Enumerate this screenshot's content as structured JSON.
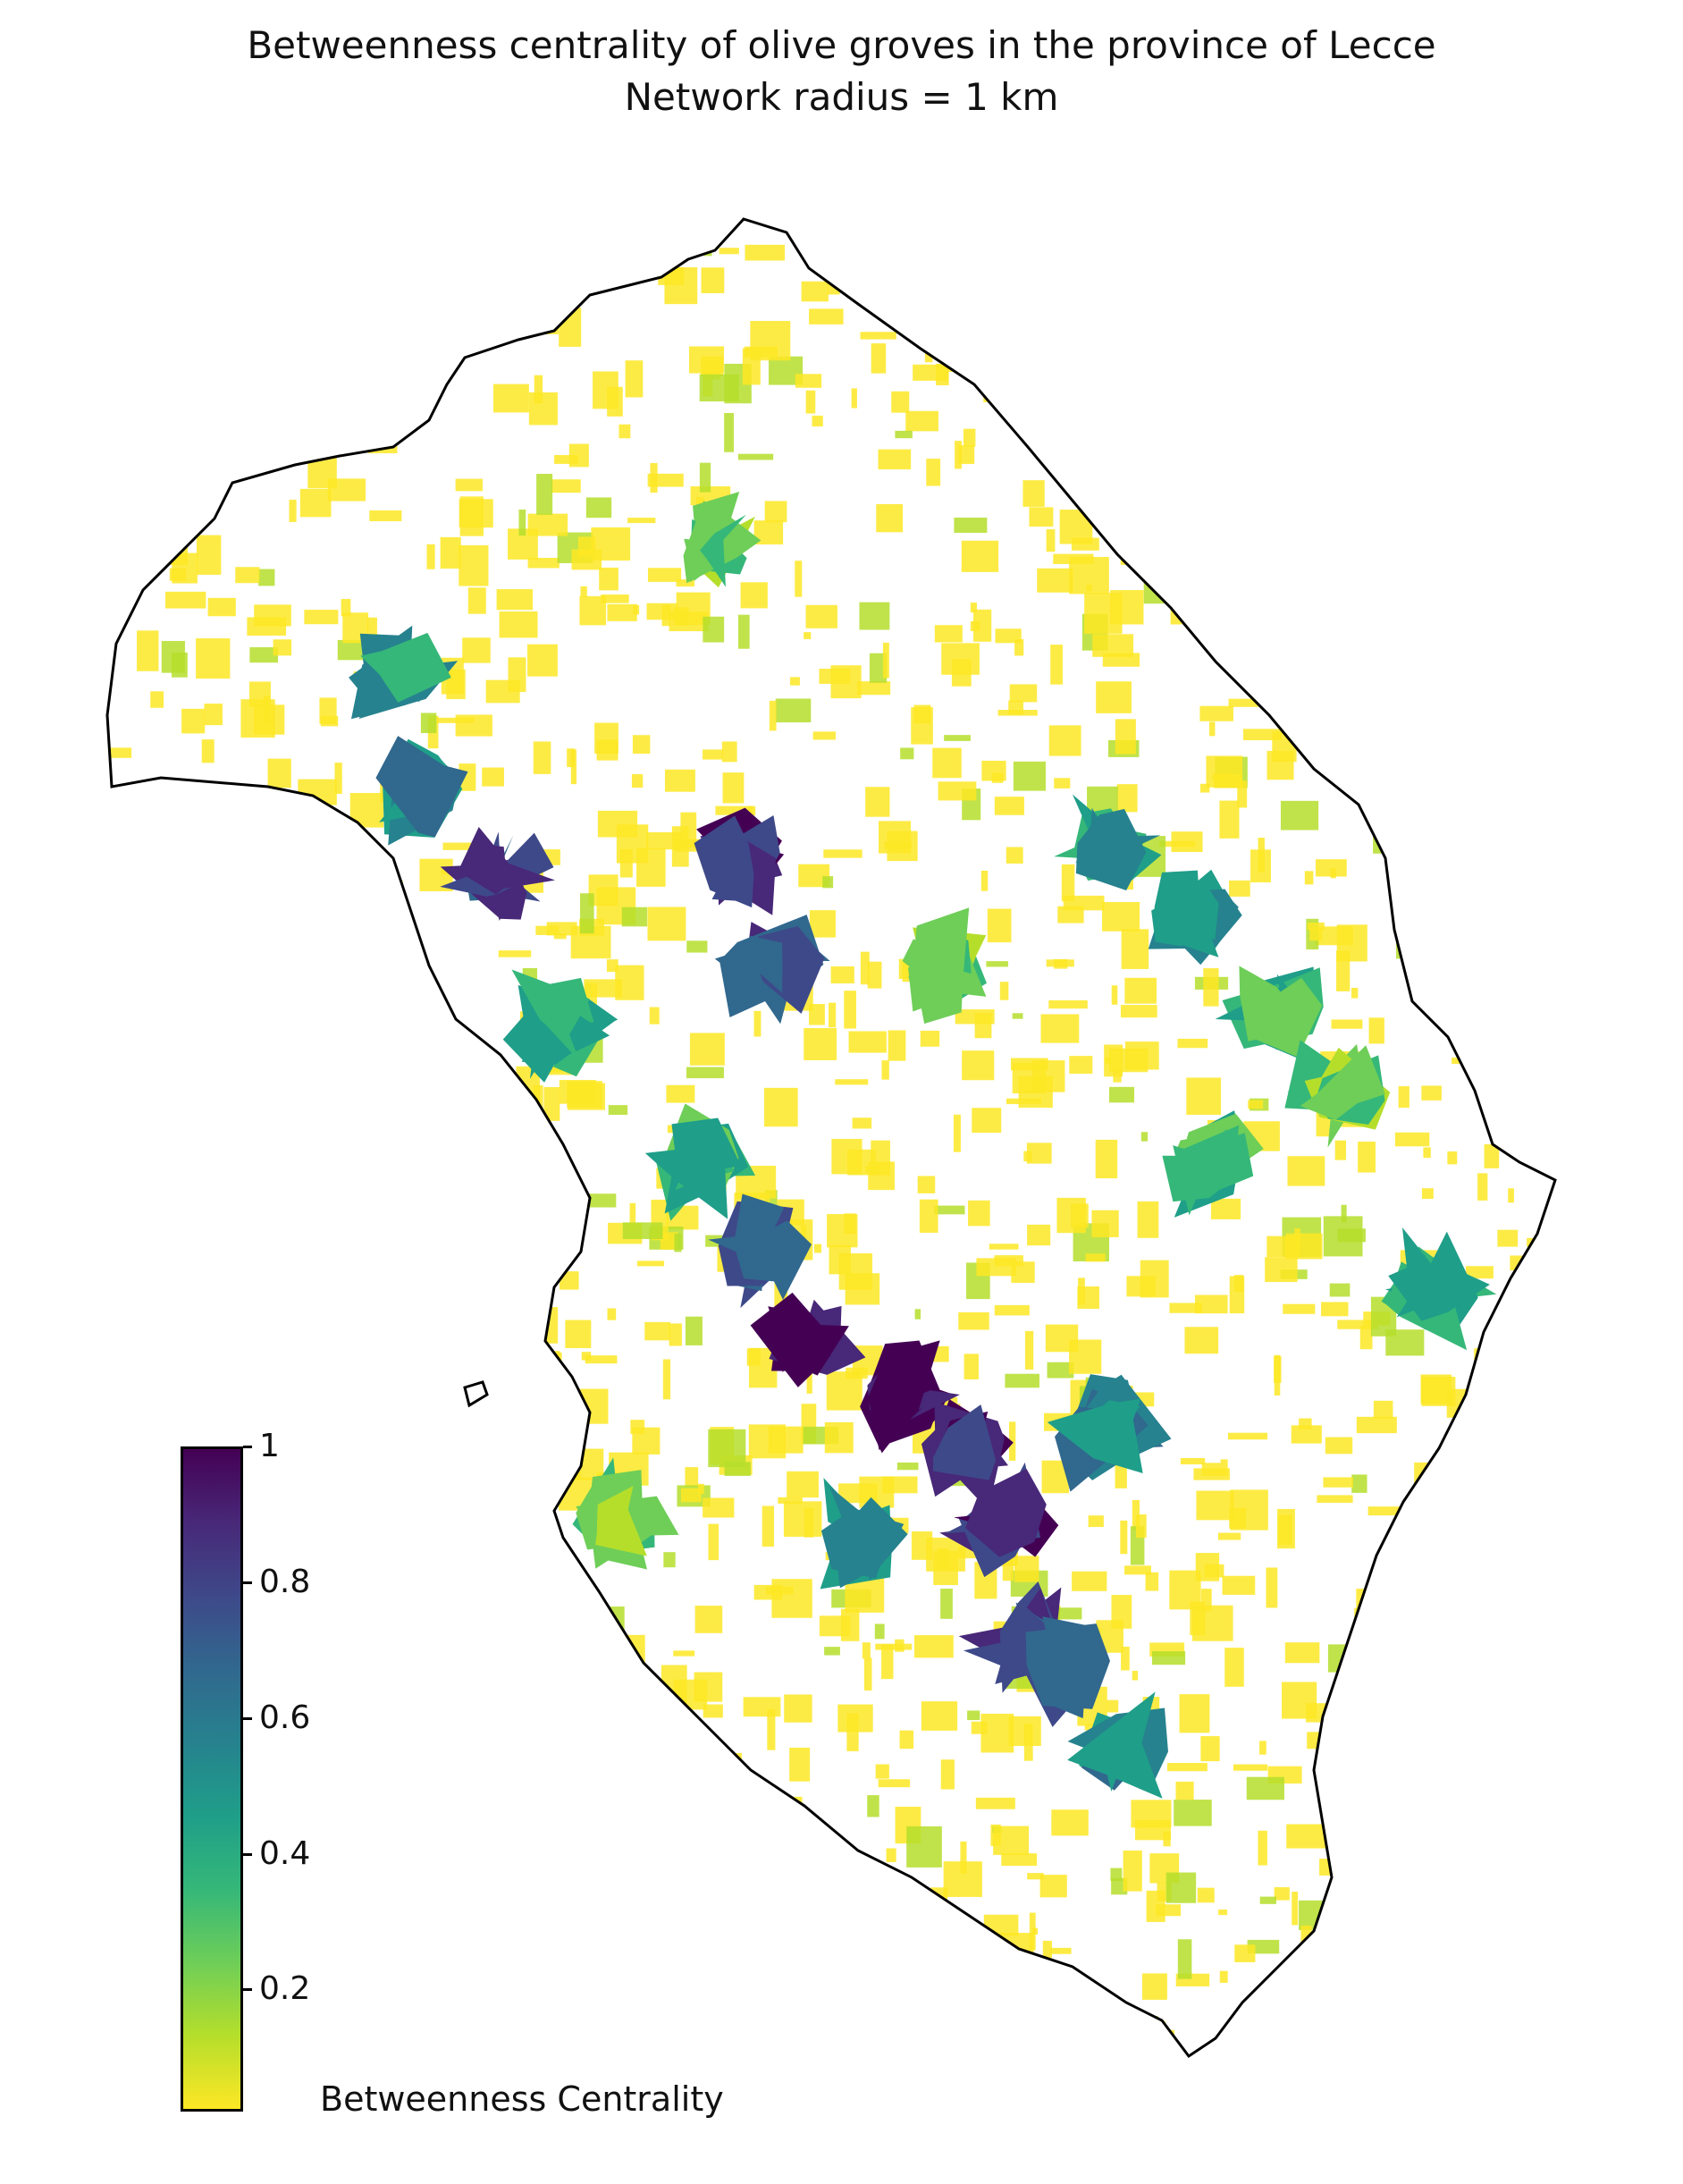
{
  "title": {
    "line1": "Betweenness centrality of olive groves in the province of Lecce",
    "line2": "Network radius = 1 km"
  },
  "colorbar": {
    "label": "Betweenness Centrality",
    "colormap": "viridis (reversed)",
    "range": [
      0.02,
      1
    ],
    "ticks": [
      {
        "value": 1,
        "label": "1"
      },
      {
        "value": 0.8,
        "label": "0.8"
      },
      {
        "value": 0.6,
        "label": "0.6"
      },
      {
        "value": 0.4,
        "label": "0.4"
      },
      {
        "value": 0.2,
        "label": "0.2"
      }
    ],
    "colors": [
      "#fde725",
      "#b5de2b",
      "#6ece58",
      "#35b779",
      "#1f9e89",
      "#26828e",
      "#31688e",
      "#3e4989",
      "#482878",
      "#440154"
    ]
  },
  "colors": {
    "outline": "#000000",
    "low": "#fde725",
    "high": "#440154"
  }
}
